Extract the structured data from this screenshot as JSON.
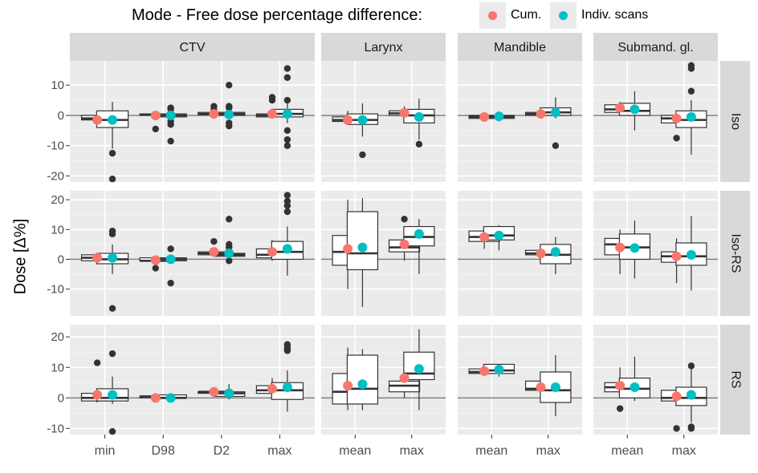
{
  "chart_data": {
    "type": "boxplot",
    "title": "",
    "ylabel": "Dose [Δ%]",
    "legend": {
      "title": "Mode - Free dose percentage difference:",
      "position": "top",
      "entries": [
        {
          "name": "Cum.",
          "color": "#F8766D"
        },
        {
          "name": "Indiv. scans",
          "color": "#00BFC4"
        }
      ]
    },
    "columns": [
      {
        "name": "CTV",
        "categories": [
          "min",
          "D98",
          "D2",
          "max"
        ]
      },
      {
        "name": "Larynx",
        "categories": [
          "mean",
          "max"
        ]
      },
      {
        "name": "Mandible",
        "categories": [
          "mean",
          "max"
        ]
      },
      {
        "name": "Submand. gl.",
        "categories": [
          "mean",
          "max"
        ]
      }
    ],
    "rows": [
      {
        "name": "Iso",
        "ylim": [
          -22,
          18
        ],
        "ticks": [
          -20,
          -10,
          0,
          10
        ]
      },
      {
        "name": "Iso-RS",
        "ylim": [
          -19,
          23
        ],
        "ticks": [
          -10,
          0,
          10,
          20
        ]
      },
      {
        "name": "RS",
        "ylim": [
          -12,
          24
        ],
        "ticks": [
          -10,
          0,
          10,
          20
        ]
      }
    ],
    "reference_line": 0,
    "series": [
      {
        "name": "Cum.",
        "panels": [
          [
            [
              [
                -3.5,
                -1.5,
                -1,
                0,
                1,
                []
              ],
              [
                -0.5,
                0,
                0.2,
                0.5,
                1,
                [
                  -4.5
                ]
              ],
              [
                0,
                0.2,
                0.5,
                1,
                1.5,
                [
                  2,
                  3
                ]
              ],
              [
                -1,
                -0.5,
                0,
                0.5,
                2,
                [
                  5,
                  6
                ]
              ]
            ],
            [
              [
                -3,
                -2,
                -1.5,
                -0.5,
                1.5,
                []
              ],
              [
                -0.5,
                0,
                0.7,
                1.5,
                3,
                []
              ]
            ],
            [
              [
                -1.5,
                -1,
                -0.5,
                0,
                0.5,
                []
              ],
              [
                -0.5,
                0,
                0.5,
                1,
                1.5,
                []
              ]
            ],
            [
              [
                0,
                1,
                2,
                3.5,
                4.5,
                []
              ],
              [
                -4,
                -2.5,
                -1,
                0,
                1,
                [
                  -7.5
                ]
              ]
            ]
          ],
          [
            [
              [
                -1,
                -0.5,
                0.5,
                1.5,
                2,
                []
              ],
              [
                -1,
                -0.5,
                -0.5,
                0.5,
                1,
                [
                  -3
                ]
              ],
              [
                1,
                1.5,
                2,
                2.5,
                3.5,
                [
                  6
                ]
              ],
              [
                -0.5,
                0.5,
                1.5,
                3.5,
                6.5,
                []
              ]
            ],
            [
              [
                -10,
                -2,
                2.5,
                8,
                20,
                []
              ],
              [
                -0.5,
                2.5,
                4,
                6.5,
                8,
                [
                  13.5
                ]
              ]
            ],
            [
              [
                3.5,
                6,
                7.5,
                9.5,
                10.5,
                []
              ],
              [
                0.5,
                1.5,
                2,
                3,
                3.5,
                []
              ]
            ],
            [
              [
                -5,
                1.5,
                5,
                7,
                10,
                []
              ],
              [
                -8,
                -1,
                1,
                2.5,
                7,
                []
              ]
            ]
          ],
          [
            [
              [
                -1.5,
                -1,
                0,
                1.5,
                3,
                [
                  11.5
                ]
              ],
              [
                0,
                0,
                0.5,
                0.5,
                0.5,
                []
              ],
              [
                1.5,
                1.5,
                2,
                2,
                3.5,
                []
              ],
              [
                0.5,
                1.5,
                2.5,
                4,
                6.5,
                []
              ]
            ],
            [
              [
                -4,
                -2,
                2,
                8,
                16.5,
                []
              ],
              [
                0,
                2,
                4,
                5.5,
                11.5,
                []
              ]
            ],
            [
              [
                7.5,
                8,
                8.5,
                9.5,
                10,
                []
              ],
              [
                1,
                2.5,
                3,
                5.5,
                5.5,
                []
              ]
            ],
            [
              [
                1,
                2,
                3.5,
                5,
                10,
                [
                  -3.5
                ]
              ],
              [
                -2.5,
                -1,
                0,
                2.5,
                3.5,
                [
                  -10
                ]
              ]
            ]
          ]
        ]
      },
      {
        "name": "Indiv. scans",
        "panels": [
          [
            [
              [
                -11,
                -4,
                -1.5,
                1.5,
                4.5,
                [
                  -12.5,
                  -21
                ]
              ],
              [
                -1,
                -0.5,
                0,
                0.5,
                1.5,
                [
                  -8.5,
                  -3,
                  -2,
                  2,
                  2.5
                ]
              ],
              [
                -1,
                0,
                0.5,
                1,
                2,
                [
                  -3.5,
                  -2.5,
                  2.5,
                  3,
                  10
                ]
              ],
              [
                -2.5,
                -0.5,
                0.5,
                2,
                4.5,
                [
                  -10,
                  -8,
                  -5,
                  5,
                  12.5,
                  15.5
                ]
              ]
            ],
            [
              [
                -7,
                -3,
                -1.5,
                0.5,
                4,
                [
                  -13
                ]
              ],
              [
                -8,
                -2.5,
                0,
                2,
                5.5,
                [
                  -9.5
                ]
              ]
            ],
            [
              [
                -2,
                -1,
                -0.5,
                0,
                1,
                []
              ],
              [
                -1,
                0,
                1,
                2.5,
                6,
                [
                  -10
                ]
              ]
            ],
            [
              [
                -5,
                0,
                1.5,
                4,
                8,
                []
              ],
              [
                -13,
                -4,
                -1.5,
                1.5,
                5,
                [
                  8,
                  15.5,
                  16.5
                ]
              ]
            ]
          ],
          [
            [
              [
                -5,
                -1.5,
                0,
                2,
                5,
                [
                  -16.5,
                  8.5,
                  9.5
                ]
              ],
              [
                -1,
                -0.5,
                0,
                0.5,
                1.5,
                [
                  -8,
                  3.5
                ]
              ],
              [
                -0.5,
                1,
                1.5,
                2,
                3,
                [
                  -0.5,
                  4,
                  5,
                  13.5
                ]
              ],
              [
                -5.5,
                0,
                2.5,
                6,
                11,
                [
                  16,
                  18,
                  19.5,
                  21.5
                ]
              ]
            ],
            [
              [
                -16,
                -3.5,
                2,
                16,
                20.5,
                []
              ],
              [
                -5,
                4.5,
                7.5,
                11,
                13.5,
                []
              ]
            ],
            [
              [
                3,
                6.5,
                8,
                11,
                11.5,
                []
              ],
              [
                -5,
                -1.5,
                1.5,
                5,
                7.5,
                []
              ]
            ],
            [
              [
                -6.5,
                0,
                4,
                8.5,
                13,
                []
              ],
              [
                -10.5,
                -2,
                1,
                5.5,
                14.5,
                []
              ]
            ]
          ],
          [
            [
              [
                -2,
                -1,
                0,
                3,
                7,
                [
                  14.5,
                  -11
                ]
              ],
              [
                -0.5,
                0,
                0,
                1,
                1.5,
                []
              ],
              [
                -0.5,
                0.5,
                1.5,
                2,
                4.5,
                []
              ],
              [
                -4.5,
                -0.5,
                2.5,
                5,
                9,
                [
                  15.5,
                  16,
                  16.5,
                  17.5
                ]
              ]
            ],
            [
              [
                -4,
                -2,
                3,
                14,
                16,
                []
              ],
              [
                -4,
                6,
                8,
                15,
                22.5,
                []
              ]
            ],
            [
              [
                7,
                8,
                9,
                11,
                11,
                []
              ],
              [
                -6,
                -1.5,
                2.5,
                8.5,
                14,
                []
              ]
            ],
            [
              [
                -1,
                0,
                3,
                6.5,
                13.5,
                []
              ],
              [
                -8,
                -2.5,
                0,
                3.5,
                9.5,
                [
                  10.5,
                  -9.5,
                  -10
                ]
              ]
            ]
          ]
        ]
      }
    ],
    "means": [
      {
        "name": "Cum.",
        "values": [
          [
            [
              -1.5,
              0,
              0.5,
              0.5
            ],
            [
              -1.5,
              0.8
            ],
            [
              -0.5,
              0.5
            ],
            [
              2.5,
              -1
            ]
          ],
          [
            [
              0.5,
              -0.3,
              2.5,
              2.5
            ],
            [
              3.5,
              5
            ],
            [
              7.5,
              2
            ],
            [
              4,
              1
            ]
          ],
          [
            [
              1,
              0,
              2,
              3
            ],
            [
              4,
              6.5
            ],
            [
              8.8,
              3.5
            ],
            [
              4,
              0.5
            ]
          ]
        ]
      },
      {
        "name": "Indiv. scans",
        "values": [
          [
            [
              -1.5,
              0,
              0.3,
              0.5
            ],
            [
              -1.5,
              -0.5
            ],
            [
              -0.3,
              1
            ],
            [
              2,
              -0.5
            ]
          ],
          [
            [
              0.5,
              0,
              2,
              3.5
            ],
            [
              4,
              8.5
            ],
            [
              8,
              2.5
            ],
            [
              3.8,
              1.5
            ]
          ],
          [
            [
              1,
              0,
              1.5,
              3.5
            ],
            [
              4.5,
              9.5
            ],
            [
              9.3,
              3.5
            ],
            [
              3.5,
              1
            ]
          ]
        ]
      }
    ]
  }
}
